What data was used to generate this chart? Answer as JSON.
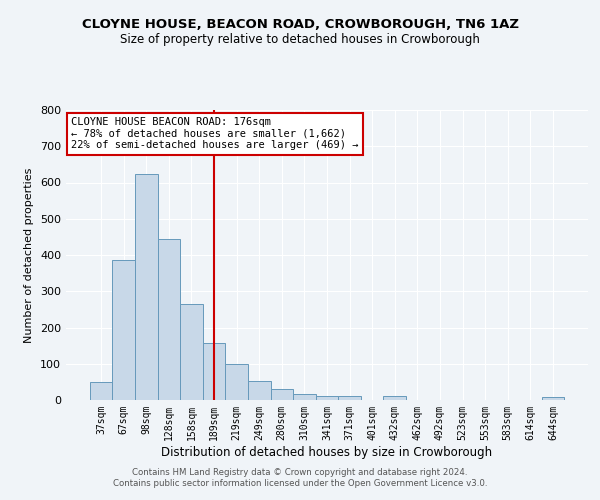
{
  "title": "CLOYNE HOUSE, BEACON ROAD, CROWBOROUGH, TN6 1AZ",
  "subtitle": "Size of property relative to detached houses in Crowborough",
  "xlabel": "Distribution of detached houses by size in Crowborough",
  "ylabel": "Number of detached properties",
  "bar_labels": [
    "37sqm",
    "67sqm",
    "98sqm",
    "128sqm",
    "158sqm",
    "189sqm",
    "219sqm",
    "249sqm",
    "280sqm",
    "310sqm",
    "341sqm",
    "371sqm",
    "401sqm",
    "432sqm",
    "462sqm",
    "492sqm",
    "523sqm",
    "553sqm",
    "583sqm",
    "614sqm",
    "644sqm"
  ],
  "bar_values": [
    50,
    385,
    623,
    443,
    265,
    157,
    98,
    52,
    30,
    17,
    10,
    12,
    0,
    10,
    0,
    0,
    0,
    0,
    0,
    0,
    8
  ],
  "bar_color": "#c8d8e8",
  "bar_edge_color": "#6699bb",
  "vline_x": 5,
  "vline_color": "#cc0000",
  "annotation_title": "CLOYNE HOUSE BEACON ROAD: 176sqm",
  "annotation_line1": "← 78% of detached houses are smaller (1,662)",
  "annotation_line2": "22% of semi-detached houses are larger (469) →",
  "annotation_box_color": "#cc0000",
  "ylim": [
    0,
    800
  ],
  "yticks": [
    0,
    100,
    200,
    300,
    400,
    500,
    600,
    700,
    800
  ],
  "footer_line1": "Contains HM Land Registry data © Crown copyright and database right 2024.",
  "footer_line2": "Contains public sector information licensed under the Open Government Licence v3.0.",
  "bg_color": "#f0f4f8",
  "plot_bg_color": "#f0f4f8"
}
